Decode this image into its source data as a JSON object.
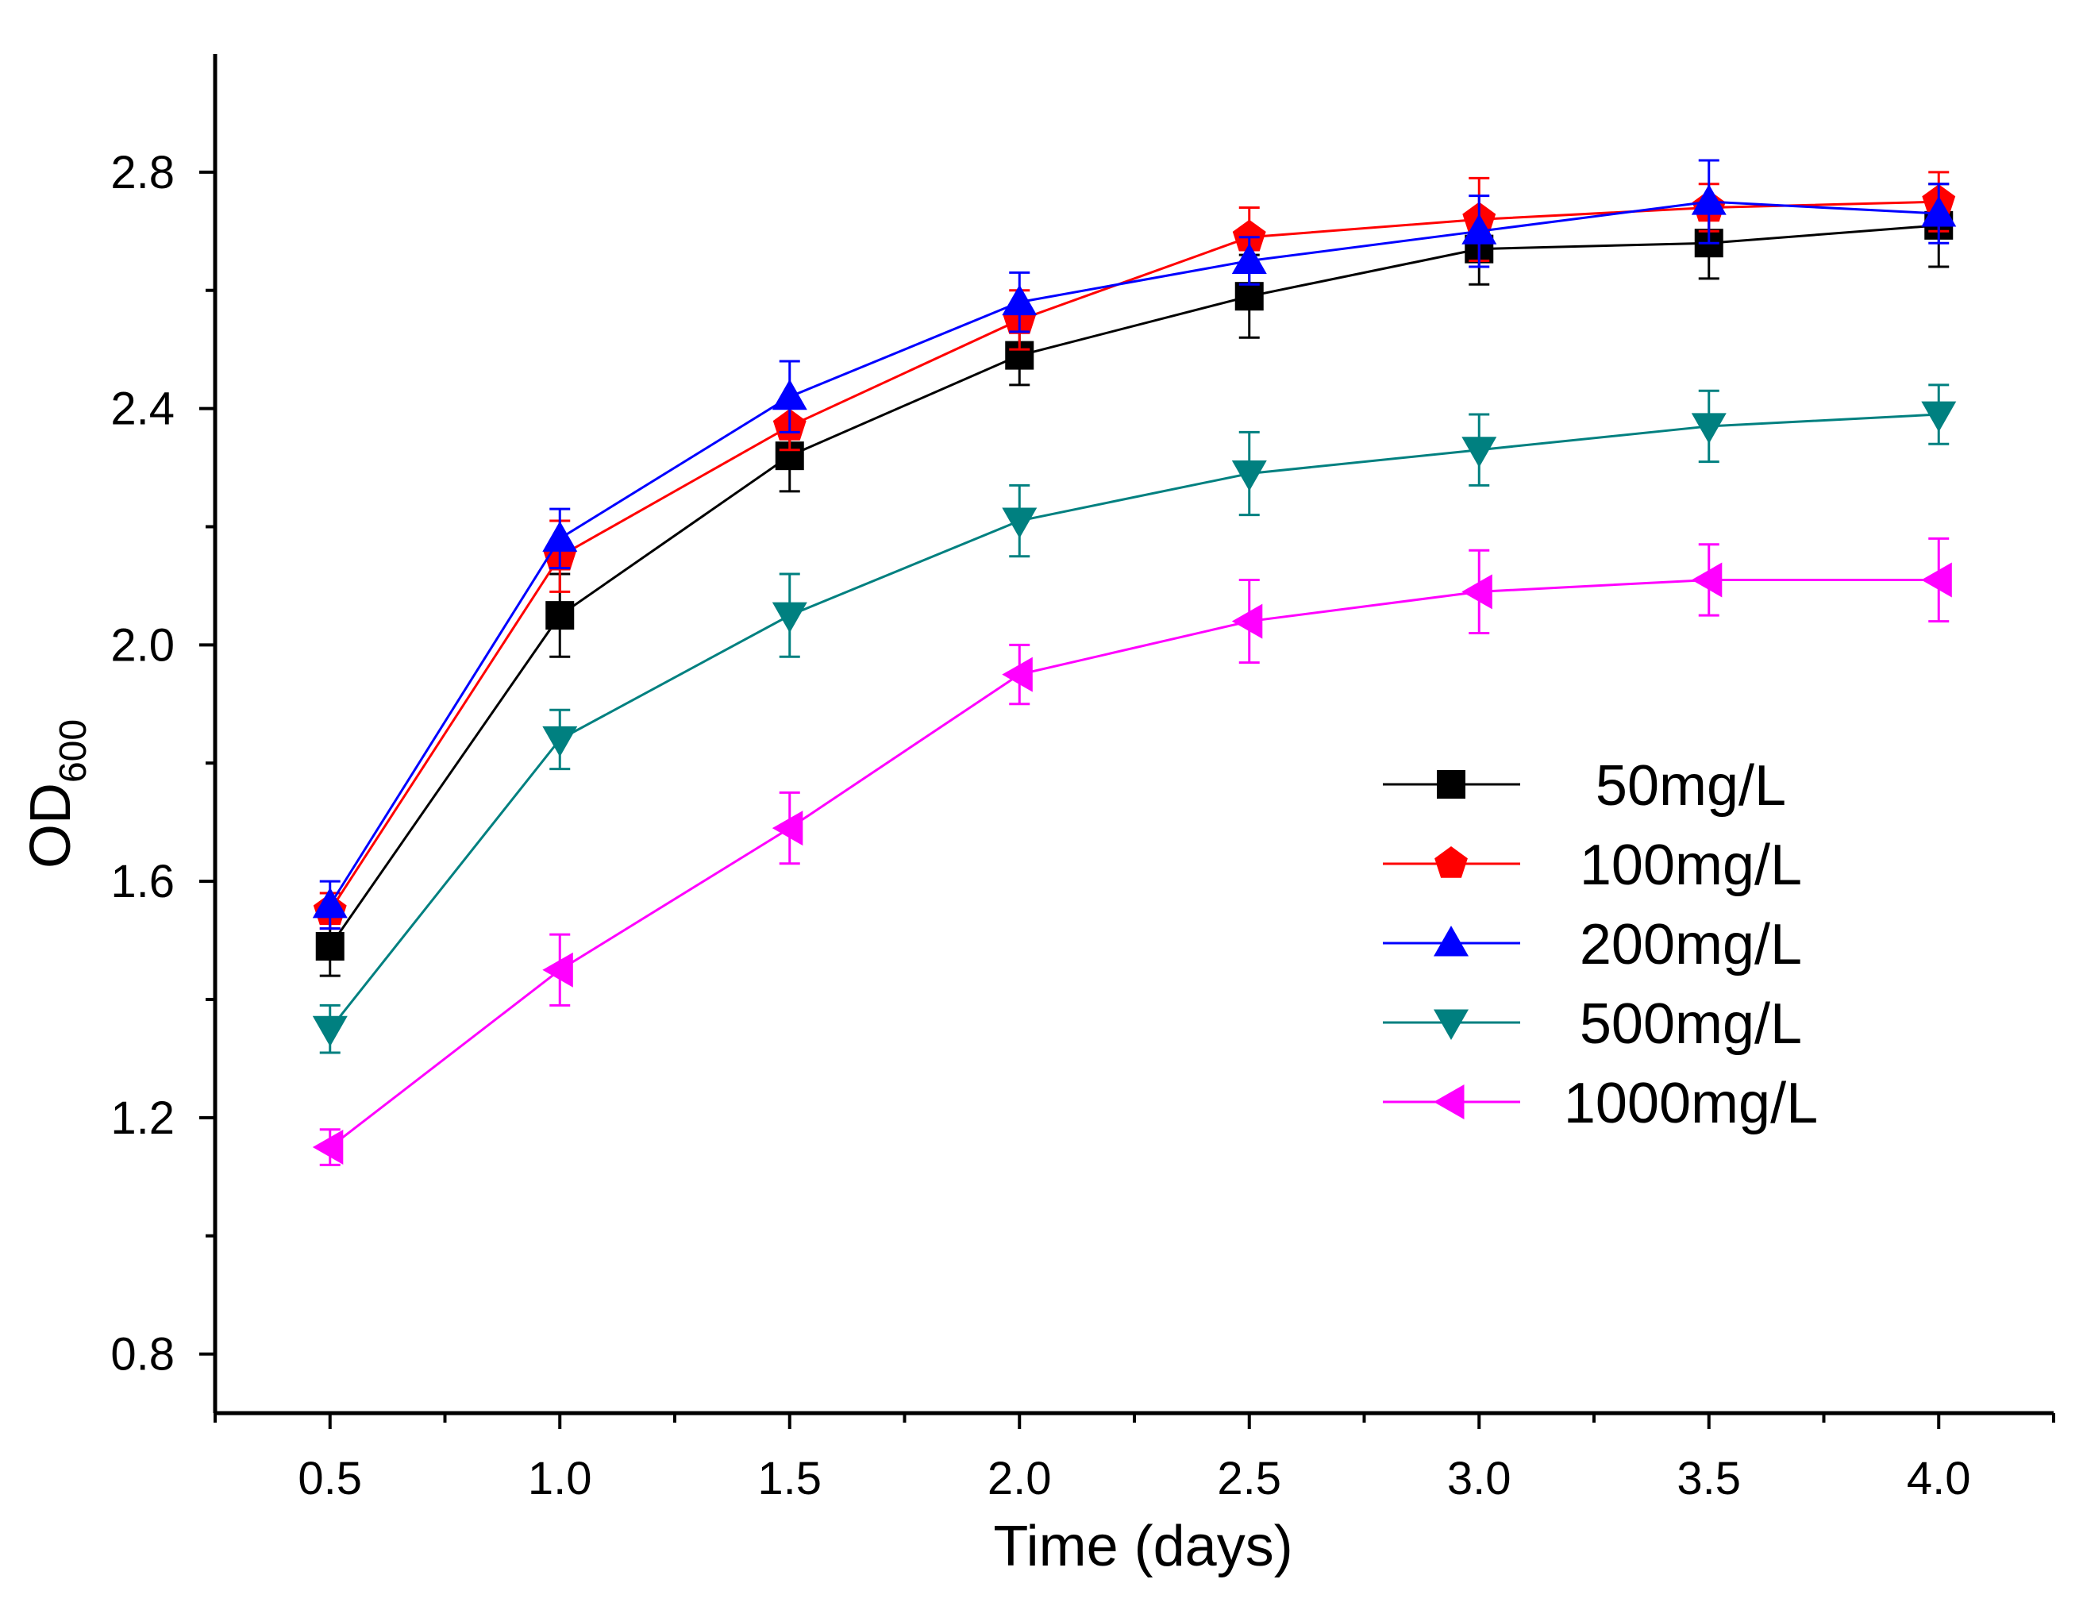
{
  "chart_data": {
    "type": "line",
    "title": "",
    "xlabel": "Time (days)",
    "ylabel": {
      "main": "OD",
      "subscript": "600"
    },
    "xlim": [
      0.25,
      4.25
    ],
    "ylim": [
      0.7,
      3.0
    ],
    "x_ticks": [
      "0.5",
      "1.0",
      "1.5",
      "2.0",
      "2.5",
      "3.0",
      "3.5",
      "4.0"
    ],
    "y_ticks": [
      "0.8",
      "1.2",
      "1.6",
      "2.0",
      "2.4",
      "2.8"
    ],
    "grid": false,
    "legend_position": "center-right",
    "x": [
      0.5,
      1.0,
      1.5,
      2.0,
      2.5,
      3.0,
      3.5,
      4.0
    ],
    "series": [
      {
        "name": "50mg/L",
        "marker": "square",
        "color": "#000000",
        "values": [
          1.49,
          2.05,
          2.32,
          2.49,
          2.59,
          2.67,
          2.68,
          2.71
        ],
        "errors": [
          0.05,
          0.07,
          0.06,
          0.05,
          0.07,
          0.06,
          0.06,
          0.07
        ]
      },
      {
        "name": "100mg/L",
        "marker": "pentagon",
        "color": "#ff0000",
        "values": [
          1.55,
          2.15,
          2.37,
          2.55,
          2.69,
          2.72,
          2.74,
          2.75
        ],
        "errors": [
          0.03,
          0.06,
          0.04,
          0.05,
          0.05,
          0.07,
          0.04,
          0.05
        ]
      },
      {
        "name": "200mg/L",
        "marker": "triangle-up",
        "color": "#0000ff",
        "values": [
          1.56,
          2.18,
          2.42,
          2.58,
          2.65,
          2.7,
          2.75,
          2.73
        ],
        "errors": [
          0.04,
          0.05,
          0.06,
          0.05,
          0.04,
          0.06,
          0.07,
          0.05
        ]
      },
      {
        "name": "500mg/L",
        "marker": "triangle-down",
        "color": "#008080",
        "values": [
          1.35,
          1.84,
          2.05,
          2.21,
          2.29,
          2.33,
          2.37,
          2.39
        ],
        "errors": [
          0.04,
          0.05,
          0.07,
          0.06,
          0.07,
          0.06,
          0.06,
          0.05
        ]
      },
      {
        "name": "1000mg/L",
        "marker": "triangle-left",
        "color": "#ff00ff",
        "values": [
          1.15,
          1.45,
          1.69,
          1.95,
          2.04,
          2.09,
          2.11,
          2.11
        ],
        "errors": [
          0.03,
          0.06,
          0.06,
          0.05,
          0.07,
          0.07,
          0.06,
          0.07
        ]
      }
    ]
  }
}
